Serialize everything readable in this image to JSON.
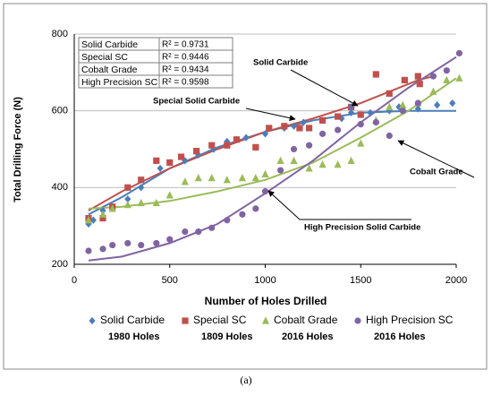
{
  "chart_data": {
    "type": "scatter",
    "xlabel": "Number of Holes Drilled",
    "ylabel": "Total Drilling Force (N)",
    "caption": "(a)",
    "xlim": [
      0,
      2000
    ],
    "xticks": [
      0,
      500,
      1000,
      1500,
      2000
    ],
    "ylim": [
      200,
      800
    ],
    "yticks": [
      200,
      400,
      600,
      800
    ],
    "grid": true,
    "series": [
      {
        "name": "Solid Carbide",
        "color": "#4a7ebb",
        "marker": "diamond",
        "r2_label": "R² = 0.9731",
        "holes_label": "1980 Holes",
        "x": [
          75,
          100,
          150,
          200,
          280,
          350,
          450,
          500,
          580,
          650,
          730,
          800,
          850,
          900,
          1000,
          1100,
          1150,
          1200,
          1300,
          1400,
          1450,
          1500,
          1550,
          1650,
          1700,
          1800,
          1900,
          1980
        ],
        "values": [
          305,
          315,
          340,
          350,
          370,
          400,
          450,
          465,
          470,
          485,
          500,
          520,
          525,
          530,
          540,
          555,
          560,
          570,
          575,
          580,
          595,
          590,
          595,
          600,
          610,
          605,
          615,
          620
        ],
        "trendline": {
          "x": [
            75,
            250,
            500,
            750,
            1000,
            1250,
            1500,
            1750,
            2000
          ],
          "values": [
            330,
            375,
            450,
            505,
            545,
            575,
            595,
            600,
            600
          ]
        }
      },
      {
        "name": "Special SC",
        "color": "#c0504d",
        "marker": "square",
        "r2_label": "R² = 0.9446",
        "holes_label": "1809 Holes",
        "x": [
          75,
          150,
          200,
          280,
          350,
          430,
          500,
          560,
          640,
          720,
          800,
          850,
          950,
          1020,
          1100,
          1180,
          1230,
          1300,
          1380,
          1450,
          1500,
          1580,
          1650,
          1730,
          1800,
          1809
        ],
        "values": [
          320,
          320,
          350,
          400,
          420,
          470,
          465,
          480,
          495,
          510,
          510,
          525,
          505,
          555,
          560,
          555,
          555,
          575,
          585,
          610,
          590,
          695,
          645,
          680,
          690,
          670
        ],
        "trendline": {
          "x": [
            75,
            250,
            500,
            750,
            1000,
            1250,
            1500,
            1800,
            1880
          ],
          "values": [
            340,
            390,
            450,
            500,
            545,
            580,
            620,
            680,
            690
          ]
        }
      },
      {
        "name": "Cobalt Grade",
        "color": "#9bbb59",
        "marker": "triangle",
        "r2_label": "R² = 0.9434",
        "holes_label": "2016 Holes",
        "x": [
          75,
          150,
          200,
          280,
          350,
          430,
          500,
          580,
          650,
          720,
          800,
          880,
          950,
          1000,
          1080,
          1150,
          1230,
          1300,
          1380,
          1450,
          1500,
          1580,
          1650,
          1720,
          1800,
          1880,
          1950,
          2016
        ],
        "values": [
          315,
          330,
          345,
          355,
          360,
          360,
          380,
          415,
          425,
          425,
          420,
          425,
          425,
          435,
          470,
          470,
          450,
          460,
          460,
          470,
          515,
          575,
          610,
          615,
          620,
          650,
          680,
          685
        ],
        "trendline": {
          "x": [
            75,
            250,
            500,
            750,
            1000,
            1250,
            1500,
            1750,
            2000
          ],
          "values": [
            345,
            350,
            365,
            390,
            420,
            465,
            530,
            600,
            685
          ]
        }
      },
      {
        "name": "High Precision SC",
        "color": "#8064a2",
        "marker": "circle",
        "r2_label": "R² = 0.9598",
        "holes_label": "2016 Holes",
        "x": [
          75,
          150,
          200,
          280,
          350,
          430,
          500,
          580,
          650,
          720,
          800,
          880,
          950,
          1000,
          1080,
          1150,
          1230,
          1300,
          1380,
          1450,
          1500,
          1580,
          1650,
          1720,
          1800,
          1880,
          1950,
          2016
        ],
        "values": [
          235,
          240,
          250,
          255,
          250,
          255,
          265,
          285,
          285,
          295,
          315,
          330,
          345,
          390,
          445,
          500,
          510,
          540,
          550,
          610,
          565,
          570,
          535,
          600,
          620,
          690,
          705,
          750
        ],
        "trendline": {
          "x": [
            75,
            250,
            500,
            750,
            1000,
            1250,
            1500,
            1750,
            2000
          ],
          "values": [
            210,
            220,
            255,
            305,
            385,
            470,
            570,
            660,
            740
          ]
        }
      }
    ],
    "annotations": [
      {
        "text": "Solid Carbide"
      },
      {
        "text": "Special Solid Carbide"
      },
      {
        "text": "Cobalt Grade"
      },
      {
        "text": "High Precision Solid Carbide"
      }
    ]
  }
}
